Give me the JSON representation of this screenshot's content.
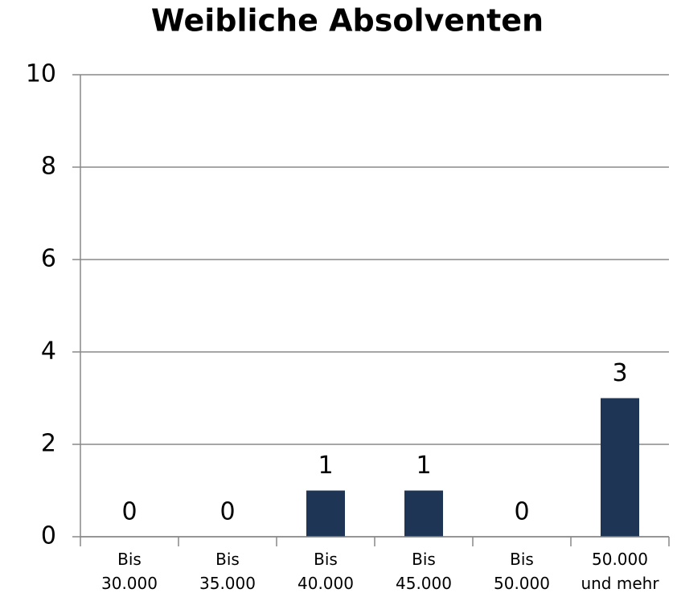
{
  "chart_data": {
    "type": "bar",
    "title": "Weibliche Absolventen",
    "categories": [
      "Bis 30.000",
      "Bis 35.000",
      "Bis 40.000",
      "Bis 45.000",
      "Bis 50.000",
      "50.000 und mehr"
    ],
    "values": [
      0,
      0,
      1,
      1,
      0,
      3
    ],
    "color": "#1f3556",
    "ylim": [
      0,
      10
    ],
    "yticks": [
      0,
      2,
      4,
      6,
      8,
      10
    ],
    "grid": true
  }
}
